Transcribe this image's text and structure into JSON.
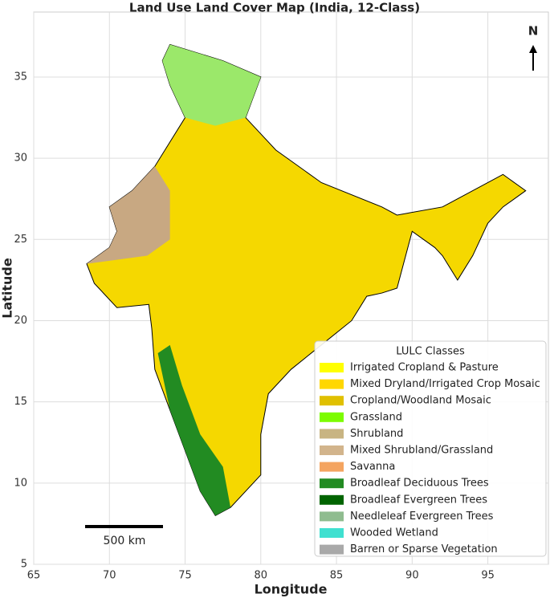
{
  "title": "Land Use Land Cover Map (India, 12-Class)",
  "axes": {
    "xlabel": "Longitude",
    "ylabel": "Latitude",
    "xlim": [
      65,
      99
    ],
    "ylim": [
      5,
      39
    ],
    "xticks": [
      65,
      70,
      75,
      80,
      85,
      90,
      95
    ],
    "yticks": [
      5,
      10,
      15,
      20,
      25,
      30,
      35
    ],
    "grid": true
  },
  "north_arrow": "N",
  "scale_bar": "500 km",
  "legend": {
    "title": "LULC Classes",
    "items": [
      {
        "name": "Irrigated Cropland & Pasture",
        "color": "#ffff00"
      },
      {
        "name": "Mixed Dryland/Irrigated Crop Mosaic",
        "color": "#ffd700"
      },
      {
        "name": "Cropland/Woodland Mosaic",
        "color": "#e0c000"
      },
      {
        "name": "Grassland",
        "color": "#7cfc00"
      },
      {
        "name": "Shrubland",
        "color": "#c8b482"
      },
      {
        "name": "Mixed Shrubland/Grassland",
        "color": "#d2b48c"
      },
      {
        "name": "Savanna",
        "color": "#f4a460"
      },
      {
        "name": "Broadleaf Deciduous Trees",
        "color": "#228b22"
      },
      {
        "name": "Broadleaf Evergreen Trees",
        "color": "#006400"
      },
      {
        "name": "Needleleaf Evergreen Trees",
        "color": "#8fbc8f"
      },
      {
        "name": "Wooded Wetland",
        "color": "#40e0d0"
      },
      {
        "name": "Barren or Sparse Vegetation",
        "color": "#a9a9a9"
      }
    ]
  }
}
